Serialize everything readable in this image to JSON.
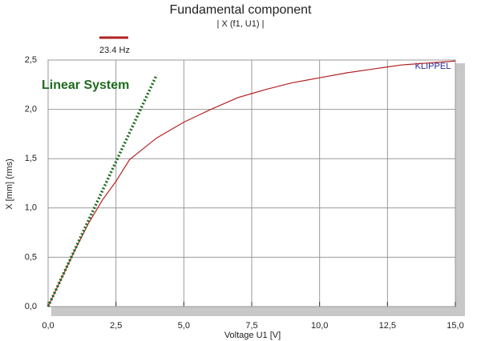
{
  "chart_data": {
    "type": "line",
    "title": "Fundamental component",
    "subtitle": "| X (f1, U1) |",
    "x_label": "Voltage U1  [V]",
    "y_label": "X  [mm]  (rms)",
    "annotations": [
      "KLIPPEL"
    ],
    "series": [
      {
        "name": "23.4 Hz",
        "color": "#b22222",
        "style": "solid",
        "x": [
          0,
          0.5,
          1,
          1.5,
          2,
          2.5,
          3,
          4,
          5,
          6,
          7,
          7.5,
          8,
          9,
          10,
          11,
          12,
          12.5,
          13,
          14,
          15
        ],
        "values": [
          0,
          0.29,
          0.58,
          0.85,
          1.08,
          1.27,
          1.49,
          1.71,
          1.87,
          2.0,
          2.12,
          2.16,
          2.2,
          2.27,
          2.32,
          2.37,
          2.41,
          2.43,
          2.45,
          2.47,
          2.49
        ]
      },
      {
        "name": "Linear System",
        "color": "#1e6b1e",
        "style": "dotted",
        "x": [
          0,
          4.0
        ],
        "values": [
          0,
          2.35
        ]
      }
    ],
    "xlim": [
      0,
      15
    ],
    "xticks": [
      {
        "value": 0,
        "label": "0,0"
      },
      {
        "value": 2.5,
        "label": "2,5"
      },
      {
        "value": 5,
        "label": "5,0"
      },
      {
        "value": 7.5,
        "label": "7,5"
      },
      {
        "value": 10,
        "label": "10,0"
      },
      {
        "value": 12.5,
        "label": "12,5"
      },
      {
        "value": 15,
        "label": "15,0"
      }
    ],
    "ylim": [
      0,
      2.5
    ],
    "yticks": [
      {
        "value": 0,
        "label": "0,0"
      },
      {
        "value": 0.5,
        "label": "0,5"
      },
      {
        "value": 1,
        "label": "1,0"
      },
      {
        "value": 1.5,
        "label": "1,5"
      },
      {
        "value": 2,
        "label": "2,0"
      },
      {
        "value": 2.5,
        "label": "2,5"
      }
    ],
    "grid": true
  }
}
